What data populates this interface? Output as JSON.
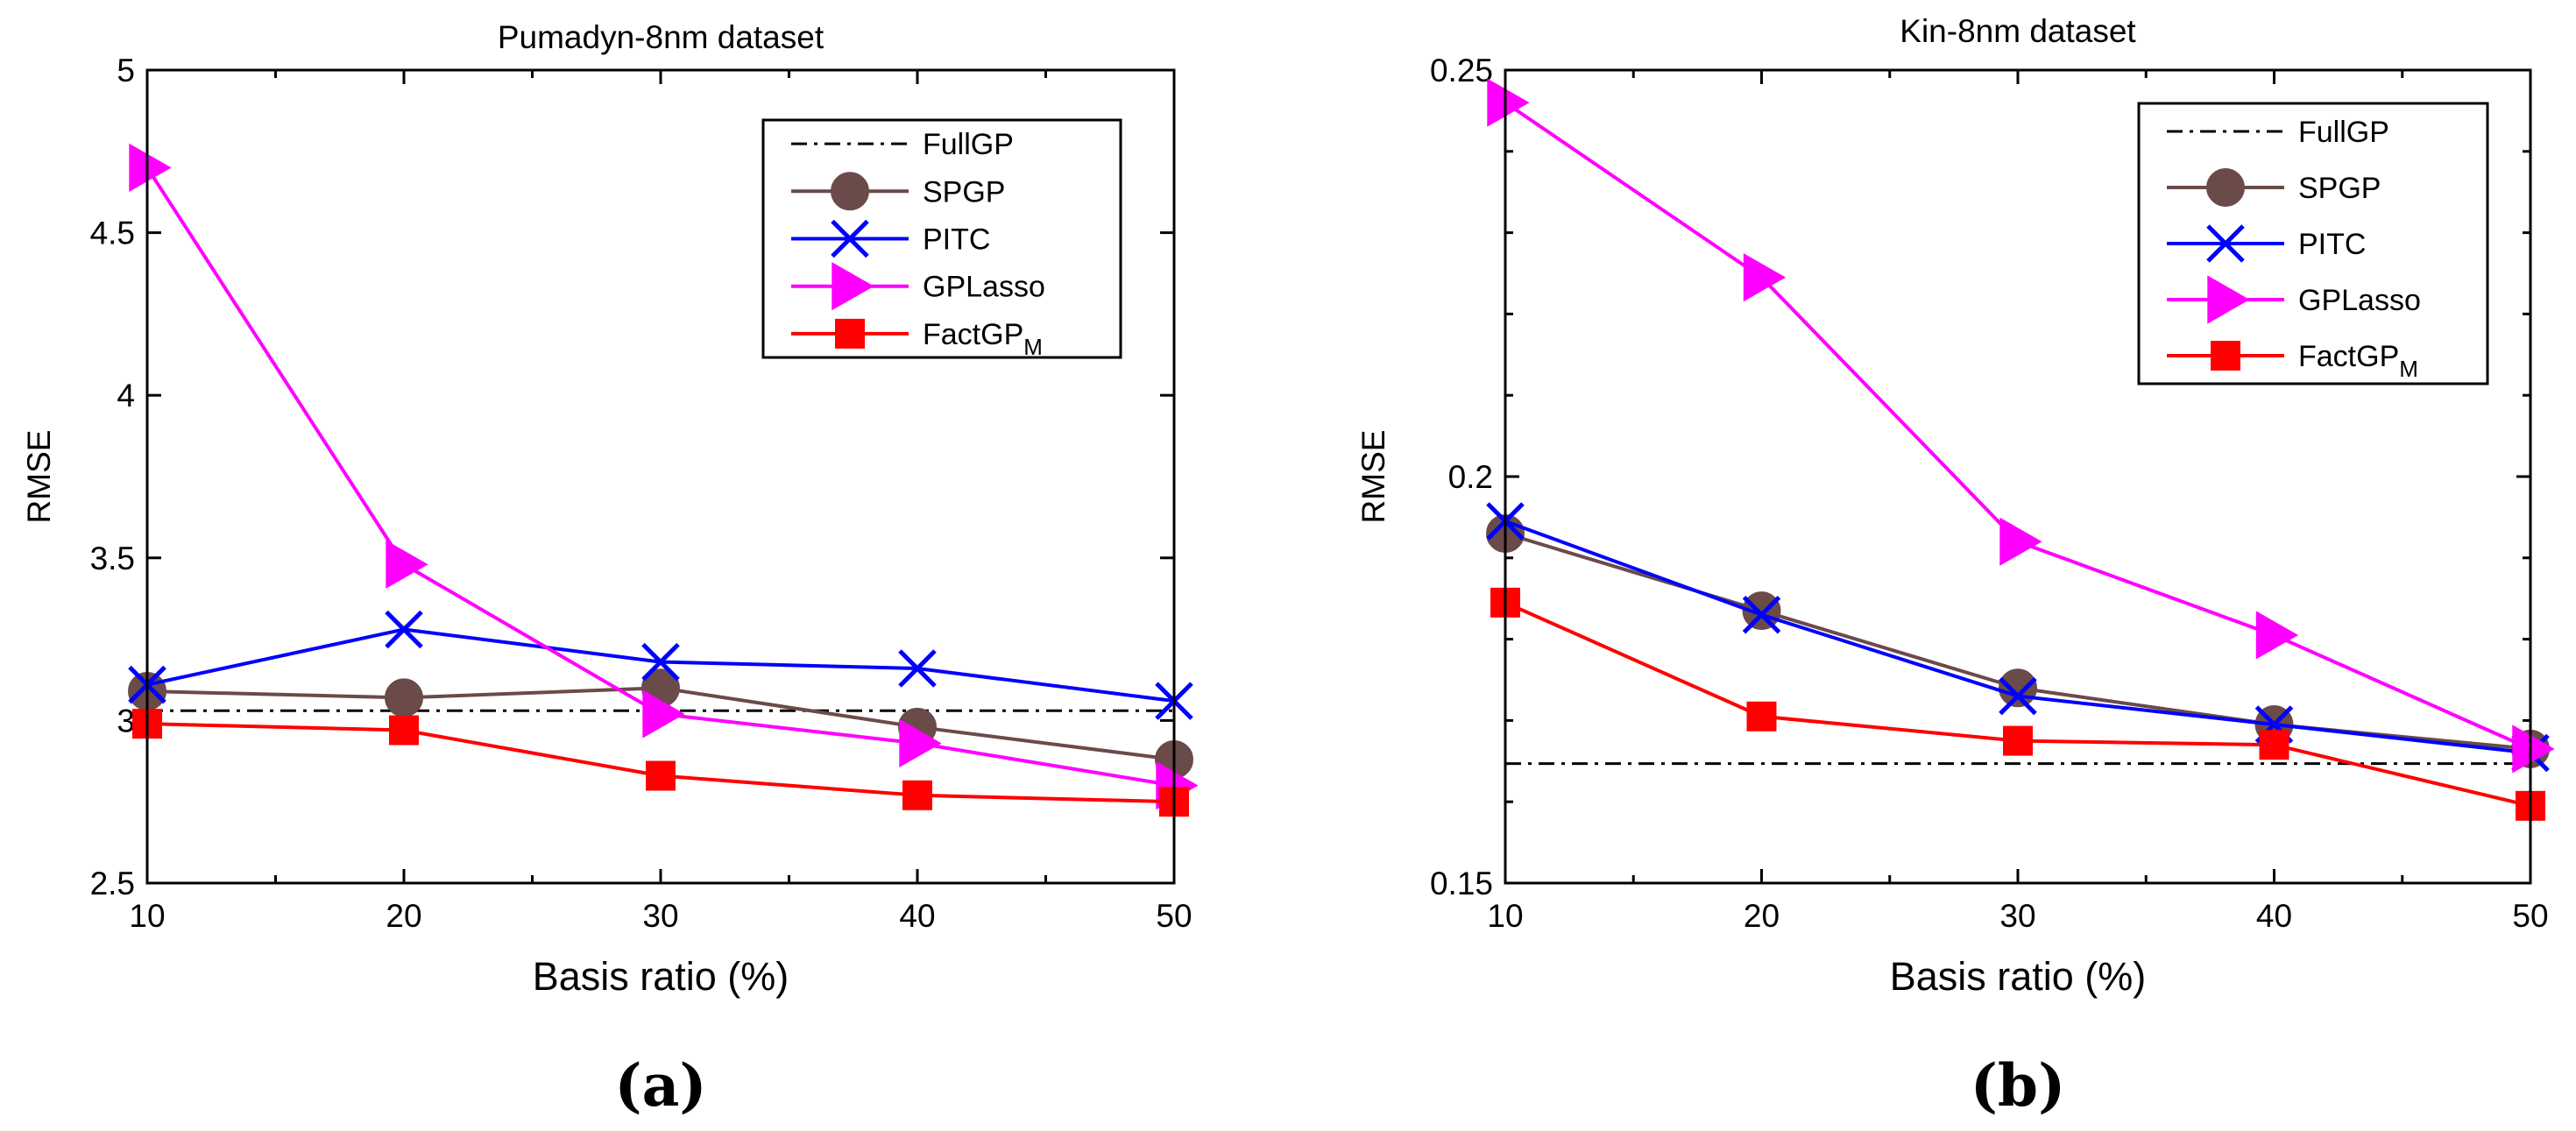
{
  "chart_data": [
    {
      "type": "line",
      "panel_label": "(a)",
      "title": "Pumadyn-8nm dataset",
      "xlabel": "Basis ratio (%)",
      "ylabel": "RMSE",
      "x": [
        10,
        20,
        30,
        40,
        50
      ],
      "xlim": [
        10,
        50
      ],
      "ylim": [
        2.5,
        5
      ],
      "xticks": [
        10,
        20,
        30,
        40,
        50
      ],
      "xtick_labels": [
        "10",
        "20",
        "30",
        "40",
        "50"
      ],
      "yticks": [
        2.5,
        3,
        3.5,
        4,
        4.5,
        5
      ],
      "ytick_labels": [
        "2.5",
        "3",
        "3.5",
        "4",
        "4.5",
        "5"
      ],
      "grid": false,
      "legend_position": "top-right",
      "series": [
        {
          "name": "FullGP",
          "label_main": "FullGP",
          "label_sub": "",
          "values": [
            3.03,
            3.03,
            3.03,
            3.03,
            3.03
          ],
          "color": "#000000",
          "marker": "none",
          "dash": "dashdot"
        },
        {
          "name": "SPGP",
          "label_main": "SPGP",
          "label_sub": "",
          "values": [
            3.09,
            3.07,
            3.1,
            2.98,
            2.88
          ],
          "color": "#6b4a4a",
          "marker": "circle",
          "dash": "solid"
        },
        {
          "name": "PITC",
          "label_main": "PITC",
          "label_sub": "",
          "values": [
            3.11,
            3.28,
            3.18,
            3.16,
            3.06
          ],
          "color": "#0000ff",
          "marker": "x",
          "dash": "solid"
        },
        {
          "name": "GPLasso",
          "label_main": "GPLasso",
          "label_sub": "",
          "values": [
            4.7,
            3.48,
            3.02,
            2.93,
            2.8
          ],
          "color": "#ff00ff",
          "marker": "triangle-right",
          "dash": "solid"
        },
        {
          "name": "FactGP_M",
          "label_main": "FactGP",
          "label_sub": "M",
          "values": [
            2.99,
            2.97,
            2.83,
            2.77,
            2.75
          ],
          "color": "#ff0000",
          "marker": "square",
          "dash": "solid"
        }
      ]
    },
    {
      "type": "line",
      "panel_label": "(b)",
      "title": "Kin-8nm dataset",
      "xlabel": "Basis ratio (%)",
      "ylabel": "RMSE",
      "x": [
        10,
        20,
        30,
        40,
        50
      ],
      "xlim": [
        10,
        50
      ],
      "ylim": [
        0.15,
        0.25
      ],
      "xticks": [
        10,
        20,
        30,
        40,
        50
      ],
      "xtick_labels": [
        "10",
        "20",
        "30",
        "40",
        "50"
      ],
      "yticks": [
        0.15,
        0.2,
        0.25
      ],
      "ytick_labels": [
        "0.15",
        "0.2",
        "0.25"
      ],
      "minor_yticks": [
        0.16,
        0.17,
        0.18,
        0.19,
        0.21,
        0.22,
        0.23,
        0.24
      ],
      "grid": false,
      "legend_position": "top-right",
      "series": [
        {
          "name": "FullGP",
          "label_main": "FullGP",
          "label_sub": "",
          "values": [
            0.1647,
            0.1647,
            0.1647,
            0.1647,
            0.1647
          ],
          "color": "#000000",
          "marker": "none",
          "dash": "dashdot"
        },
        {
          "name": "SPGP",
          "label_main": "SPGP",
          "label_sub": "",
          "values": [
            0.193,
            0.1835,
            0.174,
            0.1695,
            0.1665
          ],
          "color": "#6b4a4a",
          "marker": "circle",
          "dash": "solid"
        },
        {
          "name": "PITC",
          "label_main": "PITC",
          "label_sub": "",
          "values": [
            0.1945,
            0.183,
            0.173,
            0.1695,
            0.166
          ],
          "color": "#0000ff",
          "marker": "x",
          "dash": "solid"
        },
        {
          "name": "GPLasso",
          "label_main": "GPLasso",
          "label_sub": "",
          "values": [
            0.246,
            0.2245,
            0.192,
            0.1805,
            0.1665
          ],
          "color": "#ff00ff",
          "marker": "triangle-right",
          "dash": "solid"
        },
        {
          "name": "FactGP_M",
          "label_main": "FactGP",
          "label_sub": "M",
          "values": [
            0.1845,
            0.1705,
            0.1675,
            0.167,
            0.1595
          ],
          "color": "#ff0000",
          "marker": "square",
          "dash": "solid"
        }
      ]
    }
  ]
}
